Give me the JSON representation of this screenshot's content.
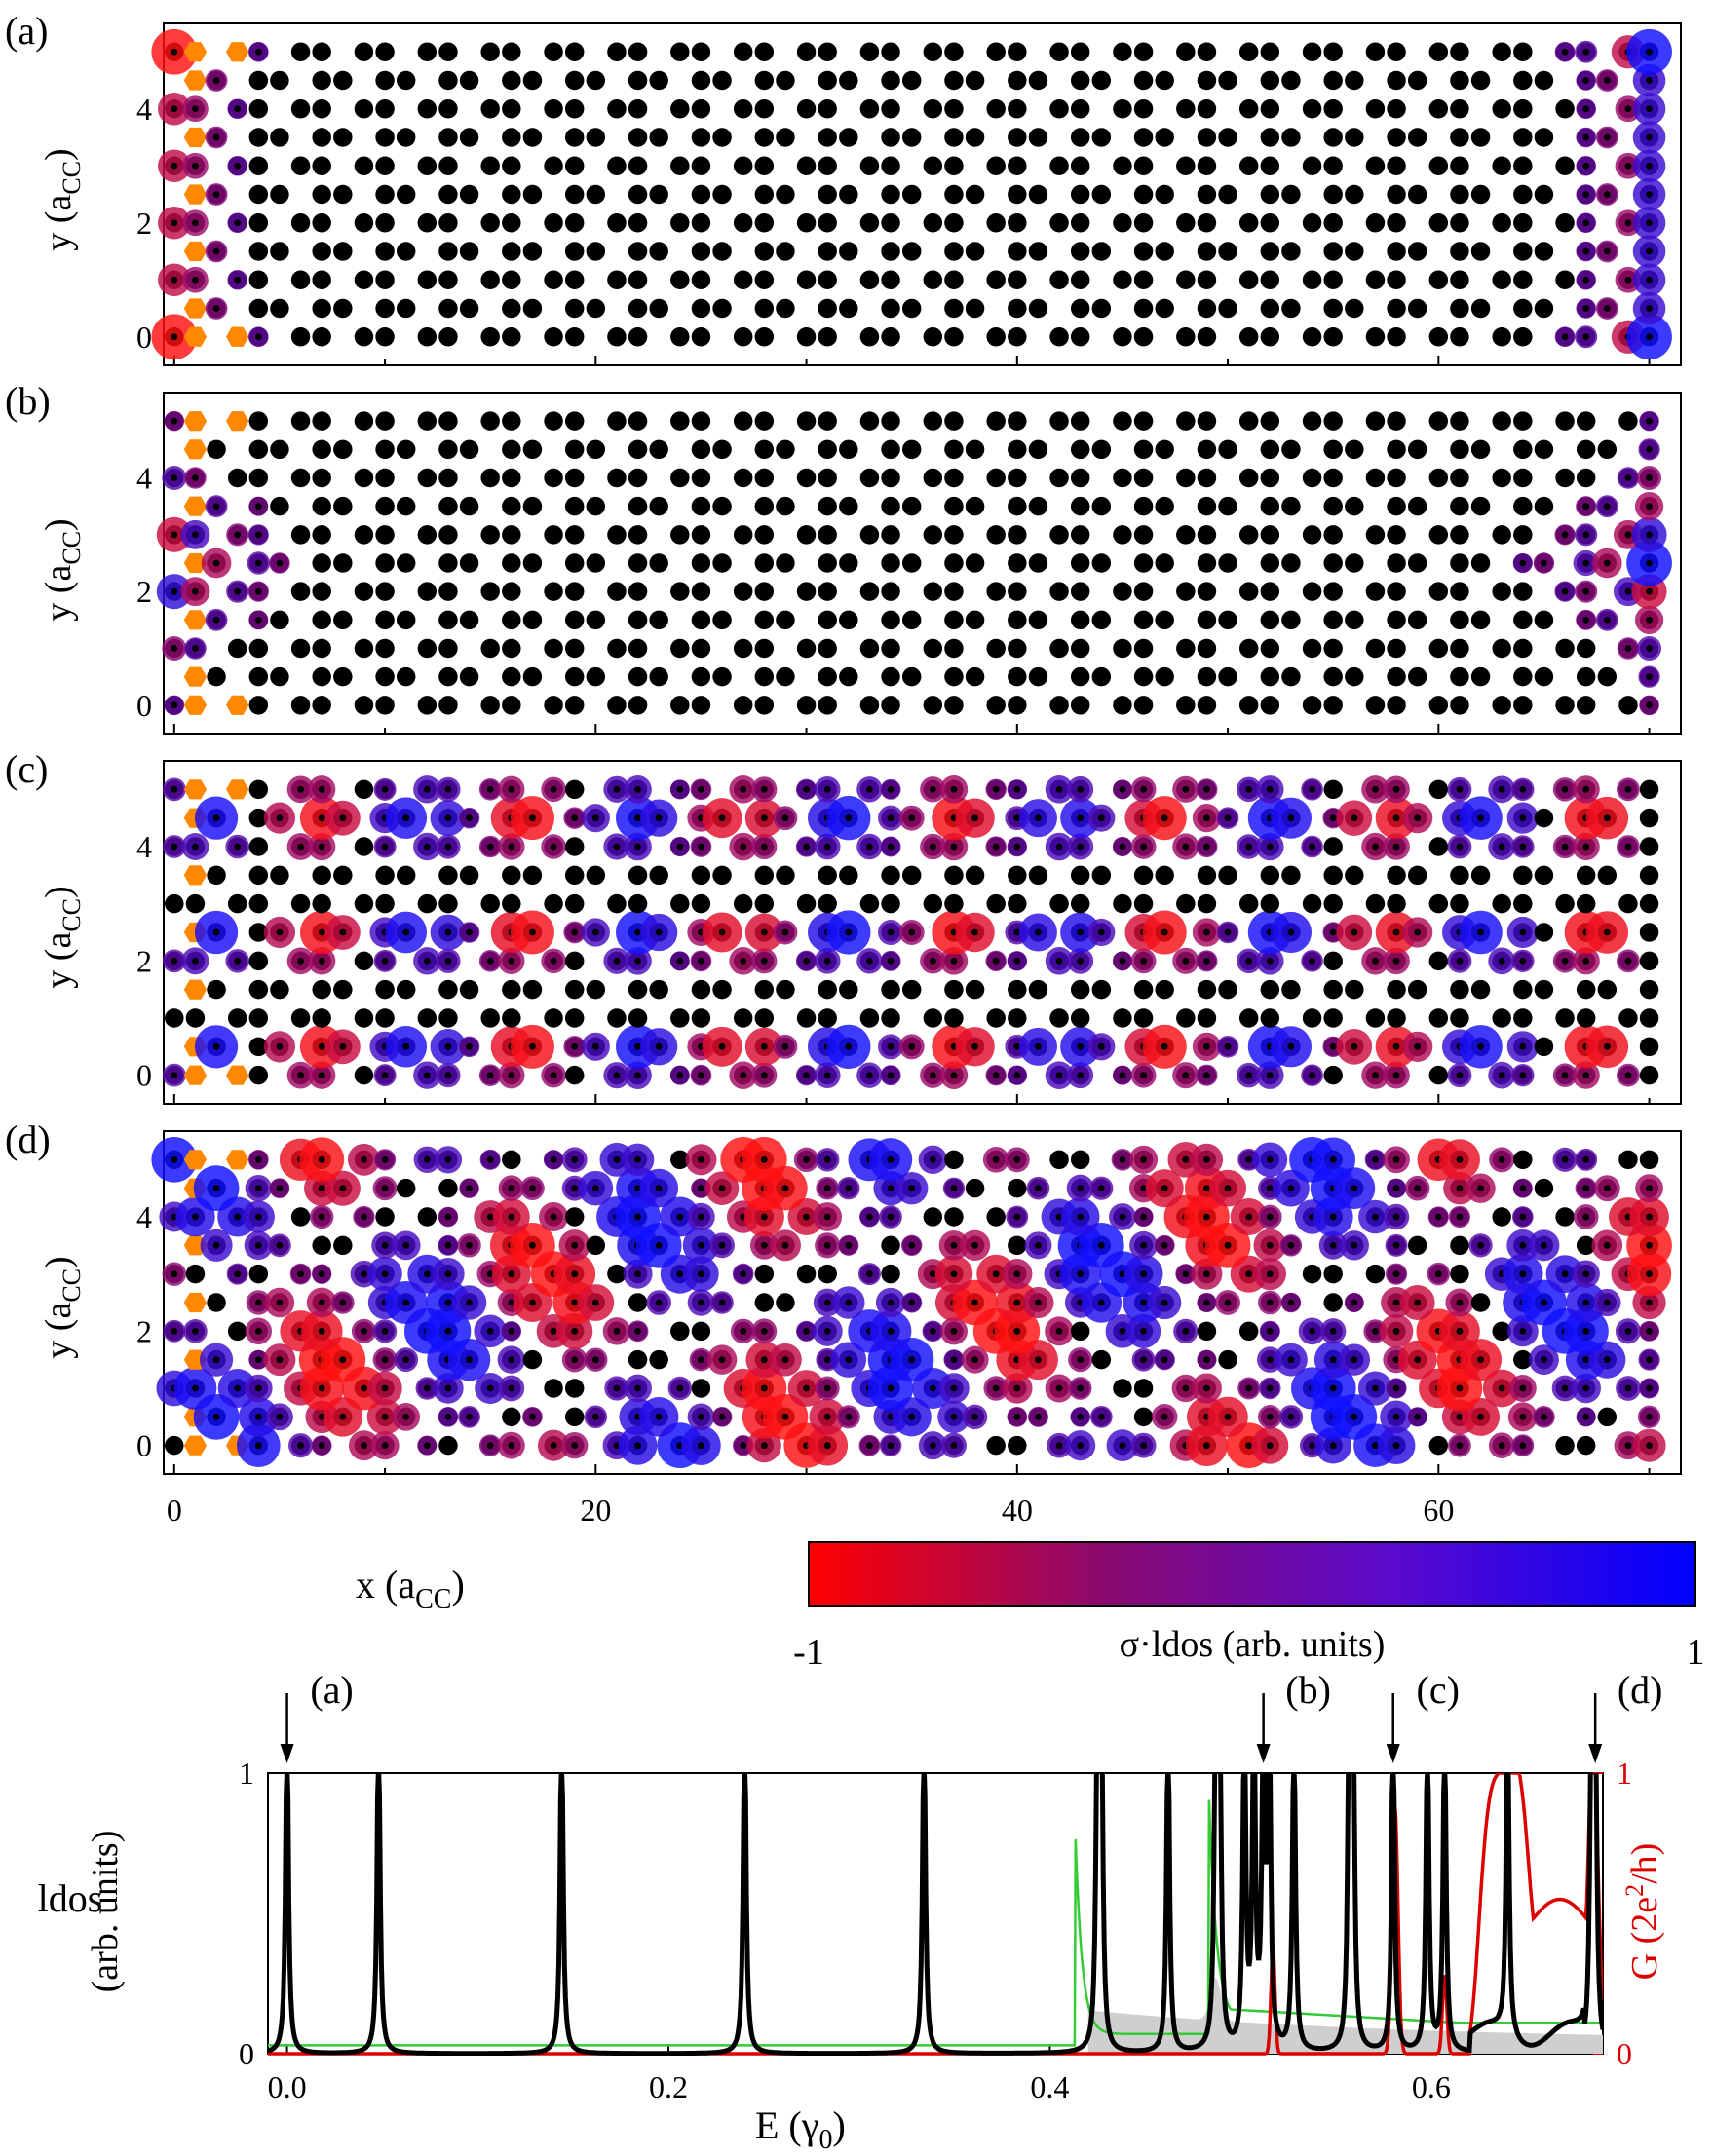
{
  "chart_data": [
    {
      "type": "scatter",
      "panel_label": "(a)",
      "ylabel_main": "y (a",
      "ylabel_sub": "CC",
      "ylabel_close": ")",
      "xlim": [
        -0.5,
        71.5
      ],
      "ylim": [
        -0.5,
        5.5
      ],
      "yticks": [
        "0",
        "2",
        "4"
      ],
      "pattern": "edge"
    },
    {
      "type": "scatter",
      "panel_label": "(b)",
      "ylabel_main": "y (a",
      "ylabel_sub": "CC",
      "ylabel_close": ")",
      "xlim": [
        -0.5,
        71.5
      ],
      "ylim": [
        -0.5,
        5.5
      ],
      "yticks": [
        "0",
        "2",
        "4"
      ],
      "pattern": "center-edge"
    },
    {
      "type": "scatter",
      "panel_label": "(c)",
      "ylabel_main": "y (a",
      "ylabel_sub": "CC",
      "ylabel_close": ")",
      "xlim": [
        -0.5,
        71.5
      ],
      "ylim": [
        -0.5,
        5.5
      ],
      "yticks": [
        "0",
        "2",
        "4"
      ],
      "pattern": "rows"
    },
    {
      "type": "scatter",
      "panel_label": "(d)",
      "ylabel_main": "y (a",
      "ylabel_sub": "CC",
      "ylabel_close": ")",
      "xlim": [
        -0.5,
        71.5
      ],
      "ylim": [
        -0.5,
        5.5
      ],
      "yticks": [
        "0",
        "2",
        "4"
      ],
      "xticks": [
        "0",
        "20",
        "40",
        "60"
      ],
      "xlabel_main": "x (a",
      "xlabel_sub": "CC",
      "xlabel_close": ")",
      "pattern": "bulk"
    },
    {
      "type": "line",
      "xlim": [
        -0.01,
        0.69
      ],
      "ylim": [
        0,
        1
      ],
      "xticks": [
        "0.0",
        "0.2",
        "0.4",
        "0.6"
      ],
      "yticks_left": [
        "0",
        "1"
      ],
      "yticks_right": [
        "0",
        "1"
      ],
      "xlabel_main": "E (γ",
      "xlabel_sub": "0",
      "xlabel_close": ")",
      "ylabel_left_1": "ldos",
      "ylabel_left_2": "(arb. units)",
      "ylabel_right_main": "G (2e",
      "ylabel_right_sup": "2",
      "ylabel_right_close": "/h)",
      "markers": [
        {
          "label": "(a)",
          "energy": 0.0
        },
        {
          "label": "(b)",
          "energy": 0.512
        },
        {
          "label": "(c)",
          "energy": 0.58
        },
        {
          "label": "(d)",
          "energy": 0.686
        }
      ],
      "ldos_peaks": [
        0.0,
        0.048,
        0.144,
        0.24,
        0.334,
        0.425,
        0.427,
        0.462,
        0.487,
        0.489,
        0.502,
        0.507,
        0.512,
        0.515,
        0.528,
        0.557,
        0.559,
        0.58,
        0.598,
        0.607,
        0.64,
        0.684,
        0.686
      ],
      "series": [
        {
          "name": "ldos",
          "color": "#000000"
        },
        {
          "name": "bulk ldos (shaded)",
          "color": "#c8c8c8"
        },
        {
          "name": "reference dos",
          "color": "#33cc33"
        },
        {
          "name": "G",
          "color": "#dd0000"
        }
      ]
    }
  ],
  "colorbar": {
    "min_label": "-1",
    "max_label": "1",
    "label": "σ·ldos (arb. units)",
    "colors": [
      "#ff0000",
      "#8a0a6e",
      "#5a0acc",
      "#0000ff"
    ]
  },
  "colors": {
    "carbon": "#000000",
    "hexagon": "#ff8800",
    "positive": "#ff1010",
    "negative": "#1010ff"
  }
}
